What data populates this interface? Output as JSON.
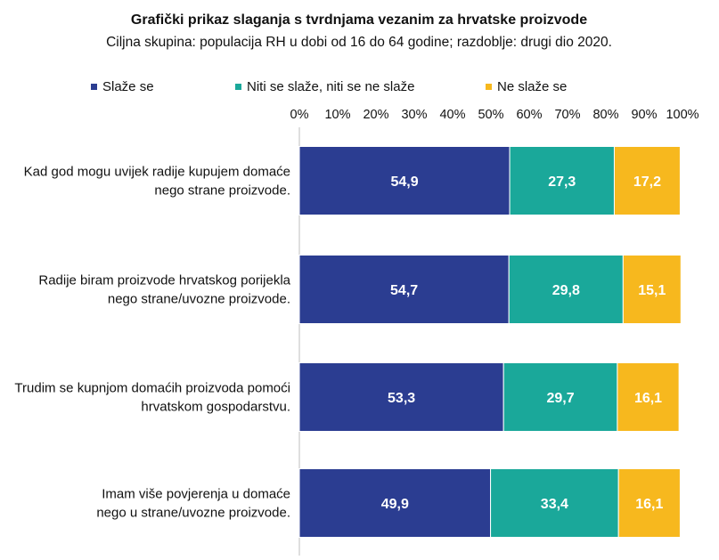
{
  "chart_data": {
    "type": "bar",
    "orientation": "horizontal",
    "stacked": true,
    "title": "Grafički prikaz slaganja s tvrdnjama vezanim za hrvatske proizvode",
    "subtitle": "Ciljna skupina: populacija RH u dobi od 16 do 64 godine; razdoblje: drugi dio 2020.",
    "xlim": [
      0,
      100
    ],
    "x_ticks": [
      "0%",
      "10%",
      "20%",
      "30%",
      "40%",
      "50%",
      "60%",
      "70%",
      "80%",
      "90%",
      "100%"
    ],
    "x_axis_position": "top",
    "grid": false,
    "legend_position": "top",
    "categories": [
      [
        "Kad god mogu uvijek radije kupujem domaće",
        "nego strane proizvode."
      ],
      [
        "Radije biram proizvode hrvatskog porijekla",
        "nego strane/uvozne proizvode."
      ],
      [
        "Trudim se kupnjom domaćih proizvoda pomoći",
        "hrvatskom gospodarstvu."
      ],
      [
        "Imam više povjerenja u domaće",
        "nego u strane/uvozne proizvode."
      ]
    ],
    "series": [
      {
        "name": "Slaže se",
        "color": "#2b3d91",
        "values": [
          54.9,
          54.7,
          53.3,
          49.9
        ],
        "labels": [
          "54,9",
          "54,7",
          "53,3",
          "49,9"
        ]
      },
      {
        "name": "Niti se slaže, niti se ne slaže",
        "color": "#1aa89a",
        "values": [
          27.3,
          29.8,
          29.7,
          33.4
        ],
        "labels": [
          "27,3",
          "29,8",
          "29,7",
          "33,4"
        ]
      },
      {
        "name": "Ne slaže se",
        "color": "#f7b81e",
        "values": [
          17.2,
          15.1,
          16.1,
          16.1
        ],
        "labels": [
          "17,2",
          "15,1",
          "16,1",
          "16,1"
        ]
      }
    ]
  }
}
